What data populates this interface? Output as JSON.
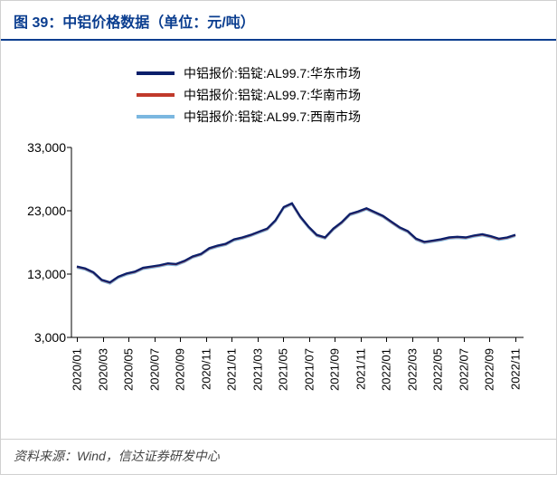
{
  "title": "图 39：中铝价格数据（单位：元/吨）",
  "source": "资料来源：Wind，信达证券研发中心",
  "chart": {
    "type": "line",
    "background_color": "#ffffff",
    "title_color": "#0a3d8f",
    "title_fontsize": 16,
    "axis_color": "#000000",
    "label_fontsize": 14,
    "x_tick_rotation": -90,
    "ylim": [
      3000,
      33000
    ],
    "yticks": [
      3000,
      13000,
      23000,
      33000
    ],
    "ytick_labels": [
      "3,000",
      "13,000",
      "23,000",
      "33,000"
    ],
    "x_labels": [
      "2020/01",
      "2020/03",
      "2020/05",
      "2020/07",
      "2020/09",
      "2020/11",
      "2021/01",
      "2021/03",
      "2021/05",
      "2021/07",
      "2021/09",
      "2021/11",
      "2022/01",
      "2022/03",
      "2022/05",
      "2022/07",
      "2022/09",
      "2022/11"
    ],
    "legend": {
      "position": "top-center",
      "items": [
        {
          "label": "中铝报价:铝锭:AL99.7:华东市场",
          "color": "#0a1f6b"
        },
        {
          "label": "中铝报价:铝锭:AL99.7:华南市场",
          "color": "#c0392b"
        },
        {
          "label": "中铝报价:铝锭:AL99.7:西南市场",
          "color": "#7bb7e0"
        }
      ]
    },
    "series": [
      {
        "name": "华东市场",
        "color": "#0a1f6b",
        "line_width": 2.2,
        "values": [
          14200,
          13900,
          13300,
          12100,
          11700,
          12600,
          13100,
          13400,
          14000,
          14200,
          14400,
          14700,
          14600,
          15100,
          15800,
          16200,
          17100,
          17500,
          17800,
          18500,
          18800,
          19200,
          19700,
          20200,
          21500,
          23600,
          24200,
          22100,
          20500,
          19200,
          18800,
          20200,
          21200,
          22500,
          22900,
          23400,
          22800,
          22200,
          21300,
          20400,
          19800,
          18600,
          18100,
          18300,
          18500,
          18800,
          18900,
          18800,
          19100,
          19300,
          19000,
          18600,
          18800,
          19200
        ]
      },
      {
        "name": "华南市场",
        "color": "#c0392b",
        "line_width": 2.2,
        "values": [
          14150,
          13850,
          13250,
          12050,
          11650,
          12550,
          13050,
          13350,
          13950,
          14150,
          14350,
          14650,
          14550,
          15050,
          15750,
          16150,
          17050,
          17450,
          17750,
          18450,
          18750,
          19150,
          19650,
          20150,
          21450,
          23550,
          24150,
          22050,
          20450,
          19150,
          18750,
          20150,
          21150,
          22450,
          22850,
          23350,
          22750,
          22150,
          21250,
          20350,
          19750,
          18550,
          18050,
          18250,
          18450,
          18750,
          18850,
          18750,
          19050,
          19250,
          18950,
          18550,
          18750,
          19150
        ]
      },
      {
        "name": "西南市场",
        "color": "#7bb7e0",
        "line_width": 2.2,
        "values": [
          14000,
          13700,
          13100,
          11900,
          11500,
          12400,
          12900,
          13200,
          13800,
          14000,
          14200,
          14500,
          14400,
          14900,
          15600,
          16000,
          16900,
          17300,
          17600,
          18300,
          18600,
          19000,
          19500,
          20000,
          21300,
          23400,
          24000,
          21900,
          20300,
          19000,
          18600,
          20000,
          21000,
          22300,
          22700,
          23200,
          22600,
          22000,
          21100,
          20200,
          19600,
          18400,
          17900,
          18100,
          18300,
          18600,
          18700,
          18600,
          18900,
          19100,
          18800,
          18400,
          18600,
          19000
        ]
      }
    ]
  }
}
